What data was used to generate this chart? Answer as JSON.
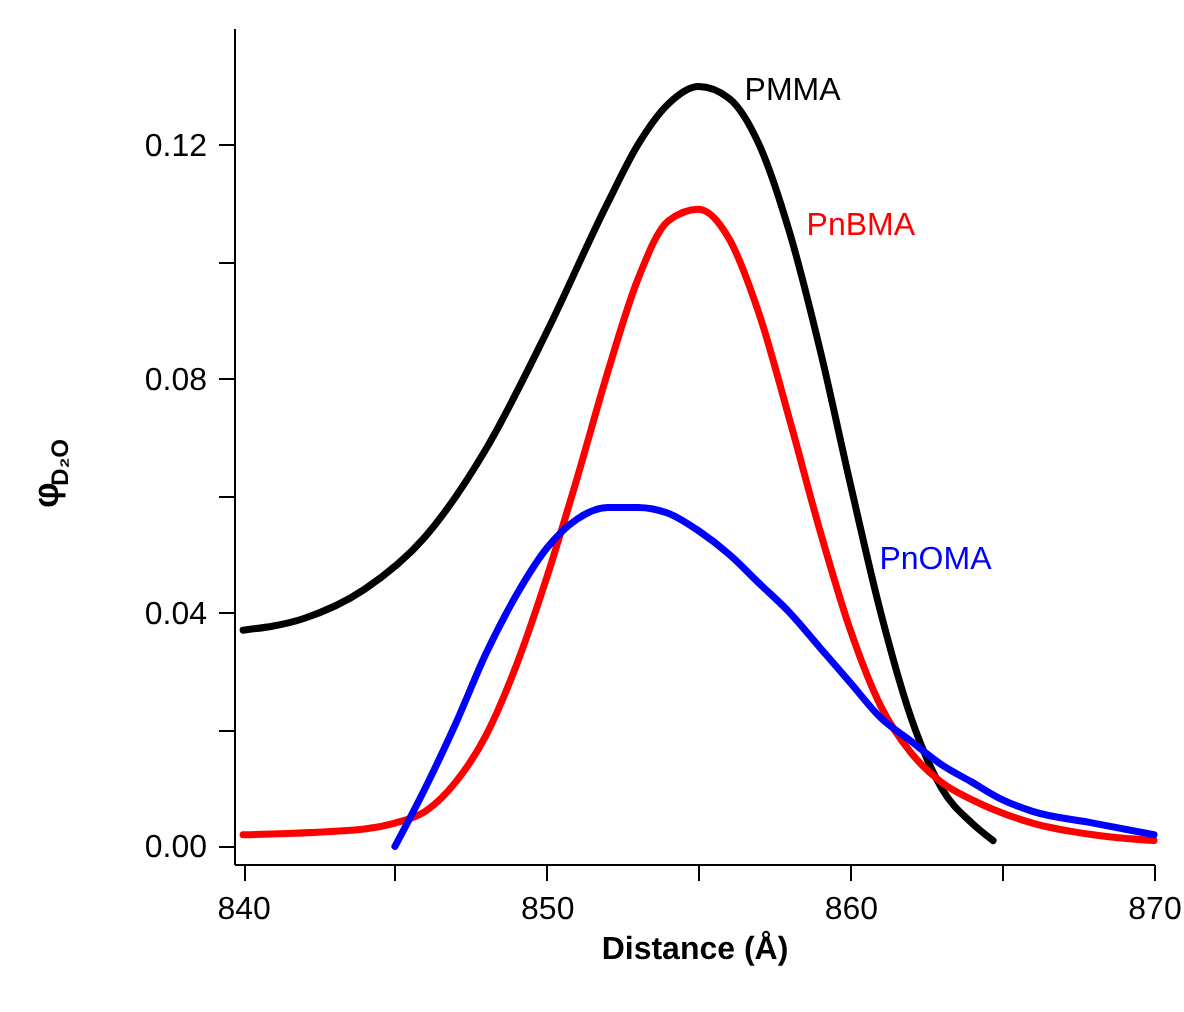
{
  "chart_data": {
    "type": "line",
    "xlabel": "Distance (Å)",
    "ylabel": "φ$_{D₂O}$",
    "xlim": [
      839.7,
      870
    ],
    "ylim": [
      -0.003,
      0.14
    ],
    "xticks": [
      840,
      {
        "value": 845,
        "label": null
      },
      850,
      {
        "value": 855,
        "label": null
      },
      860,
      {
        "value": 865,
        "label": null
      },
      870
    ],
    "yticks": [
      "0.00",
      {
        "value": 0.02,
        "label": null
      },
      0.04,
      {
        "value": 0.06,
        "label": null
      },
      0.08,
      {
        "value": 0.1,
        "label": null
      },
      0.12
    ],
    "grid": false,
    "line_style": "solid",
    "marker": "none",
    "series": [
      {
        "name": "PMMA",
        "color": "#000000",
        "x": [
          840,
          842,
          844,
          846,
          848,
          850,
          852,
          853,
          854,
          855,
          856,
          857,
          858,
          859,
          860,
          861,
          862,
          863,
          864,
          864.7
        ],
        "values": [
          0.037,
          0.039,
          0.044,
          0.053,
          0.068,
          0.088,
          0.11,
          0.12,
          0.127,
          0.13,
          0.128,
          0.12,
          0.105,
          0.085,
          0.062,
          0.04,
          0.022,
          0.01,
          0.004,
          0.001
        ]
      },
      {
        "name": "PnBMA",
        "color": "#ff0000",
        "x": [
          840,
          844,
          845,
          846,
          847,
          848,
          849,
          850,
          851,
          852,
          853,
          854,
          855,
          856,
          857,
          858,
          859,
          860,
          861,
          862,
          863,
          864,
          866,
          868,
          870
        ],
        "values": [
          0.002,
          0.003,
          0.004,
          0.006,
          0.011,
          0.019,
          0.031,
          0.046,
          0.063,
          0.081,
          0.097,
          0.107,
          0.109,
          0.104,
          0.091,
          0.073,
          0.054,
          0.037,
          0.024,
          0.016,
          0.011,
          0.008,
          0.004,
          0.002,
          0.001
        ]
      },
      {
        "name": "PnOMA",
        "color": "#0000ff",
        "x": [
          845,
          846,
          847,
          848,
          849,
          850,
          851,
          852,
          853,
          854,
          855,
          856,
          857,
          858,
          859,
          860,
          861,
          862,
          863,
          864,
          865,
          866,
          868,
          870
        ],
        "values": [
          0.0,
          0.01,
          0.021,
          0.033,
          0.043,
          0.051,
          0.056,
          0.058,
          0.058,
          0.057,
          0.054,
          0.05,
          0.045,
          0.04,
          0.034,
          0.028,
          0.022,
          0.018,
          0.014,
          0.011,
          0.008,
          0.006,
          0.004,
          0.002
        ]
      }
    ]
  }
}
